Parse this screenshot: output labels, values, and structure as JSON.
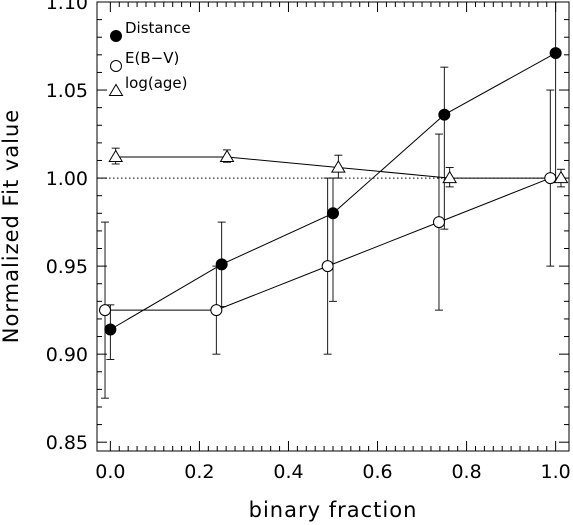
{
  "chart_data": {
    "type": "scatter",
    "xlabel": "binary fraction",
    "ylabel": "Normalized Fit value",
    "xlim": [
      -0.03,
      1.03
    ],
    "ylim": [
      0.845,
      1.1
    ],
    "x_ticks": [
      "0.0",
      "0.2",
      "0.4",
      "0.6",
      "0.8",
      "1.0"
    ],
    "x_tick_values": [
      0.0,
      0.2,
      0.4,
      0.6,
      0.8,
      1.0
    ],
    "y_ticks": [
      "0.85",
      "0.90",
      "0.95",
      "1.00",
      "1.05",
      "1.10"
    ],
    "y_tick_values": [
      0.85,
      0.9,
      0.95,
      1.0,
      1.05,
      1.1
    ],
    "reference_line": {
      "y": 1.0,
      "style": "dotted"
    },
    "legend_position": "top-left",
    "series": [
      {
        "name": "Distance",
        "marker": "filled-circle",
        "x": [
          0.0,
          0.25,
          0.5,
          0.75,
          1.0
        ],
        "y": [
          0.914,
          0.951,
          0.98,
          1.036,
          1.071
        ],
        "err_low": [
          0.897,
          0.927,
          0.93,
          0.971,
          1.0
        ],
        "err_high": [
          0.928,
          0.975,
          1.0,
          1.063,
          1.1
        ]
      },
      {
        "name": "E(B−V)",
        "marker": "open-circle",
        "x": [
          0.0,
          0.25,
          0.5,
          0.75,
          1.0
        ],
        "y": [
          0.925,
          0.925,
          0.95,
          0.975,
          1.0
        ],
        "err_low": [
          0.875,
          0.9,
          0.9,
          0.925,
          0.95
        ],
        "err_high": [
          0.975,
          0.95,
          1.0,
          1.025,
          1.05
        ]
      },
      {
        "name": "log(age)",
        "marker": "open-triangle",
        "x": [
          0.0,
          0.25,
          0.5,
          0.75,
          1.0
        ],
        "y": [
          1.012,
          1.012,
          1.006,
          1.0,
          1.0
        ],
        "err_low": [
          1.008,
          1.009,
          1.0,
          0.995,
          0.995
        ],
        "err_high": [
          1.017,
          1.016,
          1.013,
          1.006,
          1.005
        ]
      }
    ]
  },
  "colors": {
    "ink": "#000000",
    "background": "#ffffff"
  }
}
